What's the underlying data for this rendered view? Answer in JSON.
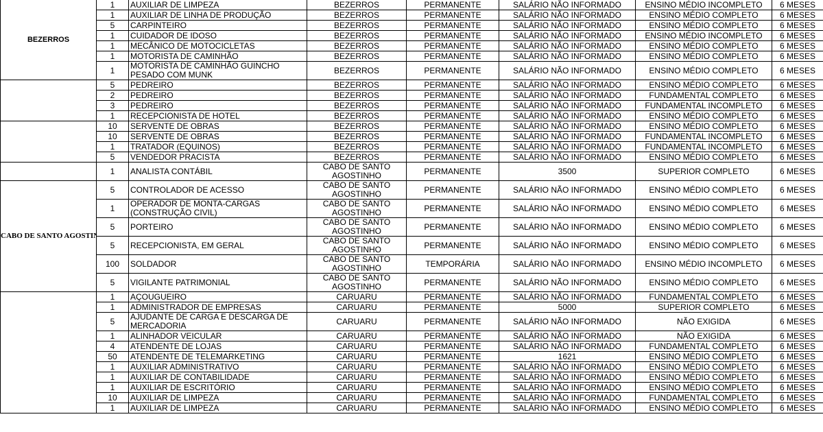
{
  "groups": [
    "BEZERROS",
    "CABO DE SANTO AGOSTINHO"
  ],
  "rows": [
    [
      1,
      "AUXILIAR DE LIMPEZA",
      "BEZERROS",
      "PERMANENTE",
      "SALÁRIO NÃO INFORMADO",
      "ENSINO MÉDIO INCOMPLETO",
      "6 MESES"
    ],
    [
      1,
      "AUXILIAR DE LINHA DE PRODUÇÃO",
      "BEZERROS",
      "PERMANENTE",
      "SALÁRIO NÃO INFORMADO",
      "ENSINO MÉDIO COMPLETO",
      "6 MESES"
    ],
    [
      5,
      "CARPINTEIRO",
      "BEZERROS",
      "PERMANENTE",
      "SALÁRIO NÃO INFORMADO",
      "ENSINO MÉDIO COMPLETO",
      "6 MESES"
    ],
    [
      1,
      "CUIDADOR DE IDOSO",
      "BEZERROS",
      "PERMANENTE",
      "SALÁRIO NÃO INFORMADO",
      "ENSINO MÉDIO INCOMPLETO",
      "6 MESES"
    ],
    [
      1,
      "MECÂNICO DE MOTOCICLETAS",
      "BEZERROS",
      "PERMANENTE",
      "SALÁRIO NÃO INFORMADO",
      "ENSINO MÉDIO COMPLETO",
      "6 MESES"
    ],
    [
      1,
      "MOTORISTA DE CAMINHÃO",
      "BEZERROS",
      "PERMANENTE",
      "SALÁRIO NÃO INFORMADO",
      "ENSINO MÉDIO COMPLETO",
      "6 MESES"
    ],
    [
      1,
      "MOTORISTA DE CAMINHÃO GUINCHO PESADO COM MUNK",
      "BEZERROS",
      "PERMANENTE",
      "SALÁRIO NÃO INFORMADO",
      "ENSINO MÉDIO COMPLETO",
      "6 MESES"
    ],
    [
      5,
      "PEDREIRO",
      "BEZERROS",
      "PERMANENTE",
      "SALÁRIO NÃO INFORMADO",
      "ENSINO MÉDIO COMPLETO",
      "6 MESES"
    ],
    [
      2,
      "PEDREIRO",
      "BEZERROS",
      "PERMANENTE",
      "SALÁRIO NÃO INFORMADO",
      "FUNDAMENTAL COMPLETO",
      "6 MESES"
    ],
    [
      3,
      "PEDREIRO",
      "BEZERROS",
      "PERMANENTE",
      "SALÁRIO NÃO INFORMADO",
      "FUNDAMENTAL INCOMPLETO",
      "6 MESES"
    ],
    [
      1,
      "RECEPCIONISTA DE HOTEL",
      "BEZERROS",
      "PERMANENTE",
      "SALÁRIO NÃO INFORMADO",
      "ENSINO MÉDIO COMPLETO",
      "6 MESES"
    ],
    [
      10,
      "SERVENTE DE OBRAS",
      "BEZERROS",
      "PERMANENTE",
      "SALÁRIO NÃO INFORMADO",
      "ENSINO MÉDIO COMPLETO",
      "6 MESES"
    ],
    [
      10,
      "SERVENTE DE OBRAS",
      "BEZERROS",
      "PERMANENTE",
      "SALÁRIO NÃO INFORMADO",
      "FUNDAMENTAL INCOMPLETO",
      "6 MESES"
    ],
    [
      1,
      "TRATADOR (EQUINOS)",
      "BEZERROS",
      "PERMANENTE",
      "SALÁRIO NÃO INFORMADO",
      "FUNDAMENTAL INCOMPLETO",
      "6 MESES"
    ],
    [
      5,
      "VENDEDOR PRACISTA",
      "BEZERROS",
      "PERMANENTE",
      "SALÁRIO NÃO INFORMADO",
      "ENSINO MÉDIO COMPLETO",
      "6 MESES"
    ],
    [
      1,
      "ANALISTA CONTÁBIL",
      "CABO DE SANTO AGOSTINHO",
      "PERMANENTE",
      3500,
      "SUPERIOR COMPLETO",
      "6 MESES"
    ],
    [
      5,
      "CONTROLADOR DE ACESSO",
      "CABO DE SANTO AGOSTINHO",
      "PERMANENTE",
      "SALÁRIO NÃO INFORMADO",
      "ENSINO MÉDIO COMPLETO",
      "6 MESES"
    ],
    [
      1,
      "OPERADOR DE MONTA-CARGAS (CONSTRUÇÃO CIVIL)",
      "CABO DE SANTO AGOSTINHO",
      "PERMANENTE",
      "SALÁRIO NÃO INFORMADO",
      "ENSINO MÉDIO COMPLETO",
      "6 MESES"
    ],
    [
      5,
      "PORTEIRO",
      "CABO DE SANTO AGOSTINHO",
      "PERMANENTE",
      "SALÁRIO NÃO INFORMADO",
      "ENSINO MÉDIO COMPLETO",
      "6 MESES"
    ],
    [
      5,
      "RECEPCIONISTA, EM GERAL",
      "CABO DE SANTO AGOSTINHO",
      "PERMANENTE",
      "SALÁRIO NÃO INFORMADO",
      "ENSINO MÉDIO COMPLETO",
      "6 MESES"
    ],
    [
      100,
      "SOLDADOR",
      "CABO DE SANTO AGOSTINHO",
      "TEMPORÁRIA",
      "SALÁRIO NÃO INFORMADO",
      "ENSINO MÉDIO INCOMPLETO",
      "6 MESES"
    ],
    [
      5,
      "VIGILANTE PATRIMONIAL",
      "CABO DE SANTO AGOSTINHO",
      "PERMANENTE",
      "SALÁRIO NÃO INFORMADO",
      "ENSINO MÉDIO COMPLETO",
      "6 MESES"
    ],
    [
      1,
      "AÇOUGUEIRO",
      "CARUARU",
      "PERMANENTE",
      "SALÁRIO NÃO INFORMADO",
      "FUNDAMENTAL COMPLETO",
      "6 MESES"
    ],
    [
      1,
      "ADMINISTRADOR DE EMPRESAS",
      "CARUARU",
      "PERMANENTE",
      5000,
      "SUPERIOR COMPLETO",
      "6 MESES"
    ],
    [
      5,
      "AJUDANTE DE CARGA E DESCARGA DE MERCADORIA",
      "CARUARU",
      "PERMANENTE",
      "SALÁRIO NÃO INFORMADO",
      "NÃO EXIGIDA",
      "6 MESES"
    ],
    [
      1,
      "ALINHADOR VEICULAR",
      "CARUARU",
      "PERMANENTE",
      "SALÁRIO NÃO INFORMADO",
      "NÃO EXIGIDA",
      "6 MESES"
    ],
    [
      4,
      "ATENDENTE DE LOJAS",
      "CARUARU",
      "PERMANENTE",
      "SALÁRIO NÃO INFORMADO",
      "FUNDAMENTAL COMPLETO",
      "6 MESES"
    ],
    [
      50,
      "ATENDENTE DE TELEMARKETING",
      "CARUARU",
      "PERMANENTE",
      1621,
      "ENSINO MÉDIO COMPLETO",
      "6 MESES"
    ],
    [
      1,
      "AUXILIAR ADMINISTRATIVO",
      "CARUARU",
      "PERMANENTE",
      "SALÁRIO NÃO INFORMADO",
      "ENSINO MÉDIO COMPLETO",
      "6 MESES"
    ],
    [
      1,
      "AUXILIAR DE CONTABILIDADE",
      "CARUARU",
      "PERMANENTE",
      "SALÁRIO NÃO INFORMADO",
      "ENSINO MÉDIO COMPLETO",
      "6 MESES"
    ],
    [
      1,
      "AUXILIAR DE ESCRITÓRIO",
      "CARUARU",
      "PERMANENTE",
      "SALÁRIO NÃO INFORMADO",
      "ENSINO MÉDIO COMPLETO",
      "6 MESES"
    ],
    [
      10,
      "AUXILIAR DE LIMPEZA",
      "CARUARU",
      "PERMANENTE",
      "SALÁRIO NÃO INFORMADO",
      "FUNDAMENTAL COMPLETO",
      "6 MESES"
    ],
    [
      1,
      "AUXILIAR DE LIMPEZA",
      "CARUARU",
      "PERMANENTE",
      "SALÁRIO NÃO INFORMADO",
      "ENSINO MÉDIO COMPLETO",
      "6 MESES"
    ]
  ]
}
